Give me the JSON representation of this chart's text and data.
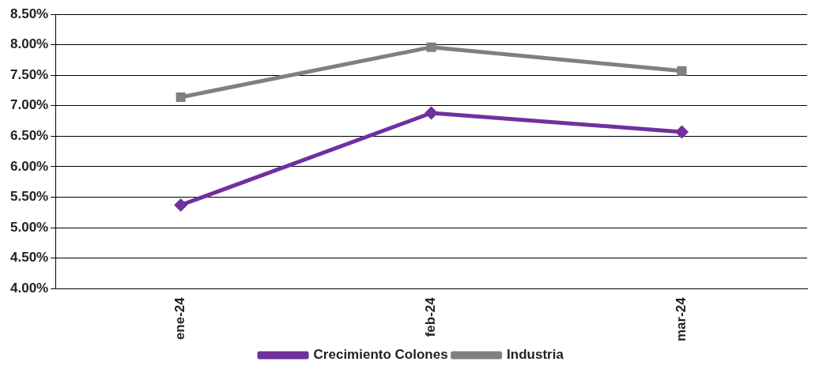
{
  "chart_data": {
    "type": "line",
    "categories": [
      "ene-24",
      "feb-24",
      "mar-24"
    ],
    "series": [
      {
        "name": "Crecimiento Colones",
        "color": "#7030a0",
        "marker": "diamond",
        "values": [
          5.37,
          6.88,
          6.57
        ]
      },
      {
        "name": "Industria",
        "color": "#808080",
        "marker": "square",
        "values": [
          7.14,
          7.96,
          7.57
        ]
      }
    ],
    "ylim": [
      4,
      8.5
    ],
    "yticks": [
      {
        "value": 4,
        "label": "4.00%"
      },
      {
        "value": 4.5,
        "label": "4.50%"
      },
      {
        "value": 5,
        "label": "5.00%"
      },
      {
        "value": 5.5,
        "label": "5.50%"
      },
      {
        "value": 6,
        "label": "6.00%"
      },
      {
        "value": 6.5,
        "label": "6.50%"
      },
      {
        "value": 7,
        "label": "7.00%"
      },
      {
        "value": 7.5,
        "label": "7.50%"
      },
      {
        "value": 8,
        "label": "8.00%"
      },
      {
        "value": 8.5,
        "label": "8.50%"
      }
    ],
    "grid": "y",
    "legend": "bottom",
    "line_style": "solid"
  }
}
